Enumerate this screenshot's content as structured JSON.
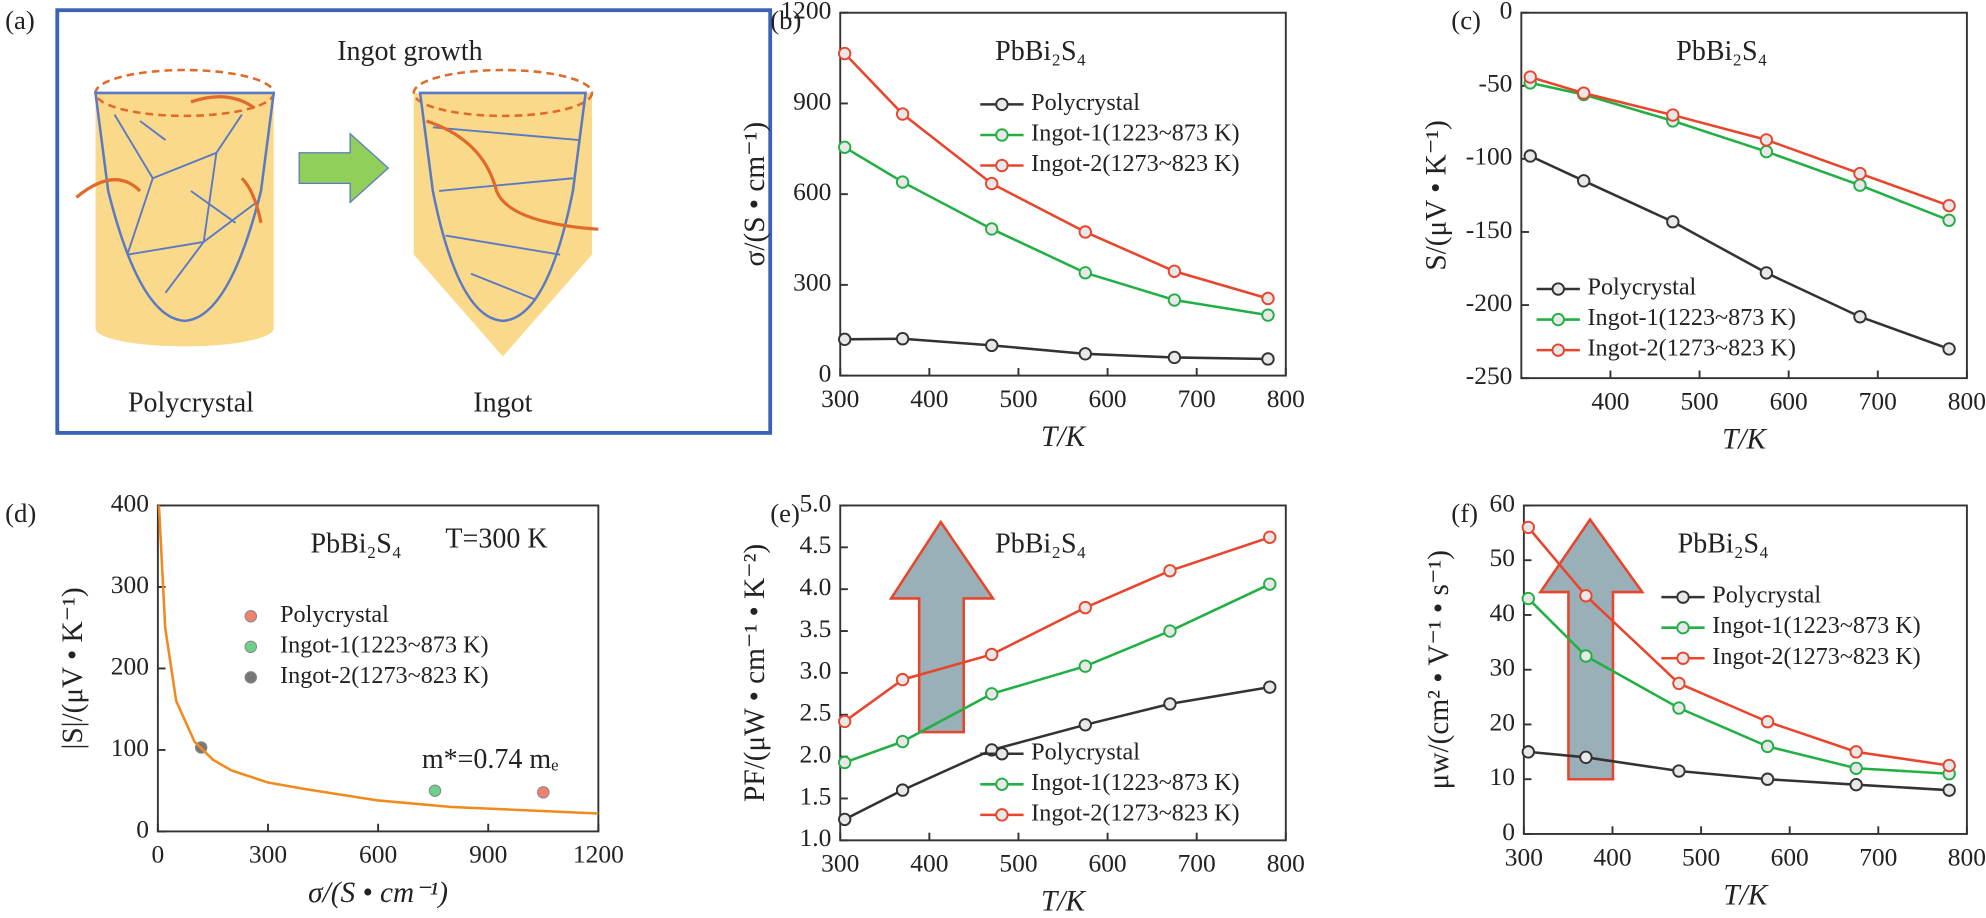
{
  "diagram": {
    "panel_label": "(a)",
    "title": "Ingot growth",
    "left_label": "Polycrystal",
    "right_label": "Ingot"
  },
  "chart_data": [
    {
      "type": "line",
      "panel_label": "(b)",
      "title": "PbBi₂S₄",
      "xlabel": "T/K",
      "ylabel": "σ/(S • cm⁻¹)",
      "x": [
        305,
        370,
        470,
        575,
        675,
        780
      ],
      "series": [
        {
          "name": "Polycrystal",
          "color": "#333333",
          "values": [
            120,
            122,
            100,
            72,
            60,
            55
          ]
        },
        {
          "name": "Ingot-1(1223~873 K)",
          "color": "#22b045",
          "values": [
            755,
            640,
            485,
            340,
            250,
            200
          ]
        },
        {
          "name": "Ingot-2(1273~823 K)",
          "color": "#e8452c",
          "values": [
            1065,
            865,
            635,
            475,
            345,
            255
          ]
        }
      ],
      "xlim": [
        300,
        800
      ],
      "xticks": [
        300,
        400,
        500,
        600,
        700,
        800
      ],
      "ylim": [
        0,
        1200
      ],
      "yticks": [
        0,
        300,
        600,
        900,
        1200
      ],
      "legend": "upper-right"
    },
    {
      "type": "line",
      "panel_label": "(c)",
      "title": "PbBi₂S₄",
      "xlabel": "T/K",
      "ylabel": "S/(μV • K⁻¹)",
      "x": [
        310,
        370,
        470,
        575,
        680,
        780
      ],
      "series": [
        {
          "name": "Polycrystal",
          "color": "#333333",
          "values": [
            -98,
            -115,
            -143,
            -178,
            -208,
            -230
          ]
        },
        {
          "name": "Ingot-1(1223~873 K)",
          "color": "#22b045",
          "values": [
            -48,
            -56,
            -74,
            -95,
            -118,
            -142
          ]
        },
        {
          "name": "Ingot-2(1273~823 K)",
          "color": "#e8452c",
          "values": [
            -44,
            -55,
            -70,
            -87,
            -110,
            -132
          ]
        }
      ],
      "xlim": [
        300,
        800
      ],
      "xticks": [
        400,
        500,
        600,
        700,
        800
      ],
      "ylim": [
        -250,
        0
      ],
      "yticks": [
        -250,
        -200,
        -150,
        -100,
        -50,
        0
      ],
      "legend": "lower-left"
    },
    {
      "type": "scatter",
      "panel_label": "(d)",
      "title": "PbBi₂S₄",
      "xlabel": "σ/(S • cm⁻¹)",
      "ylabel": "|S|/(μV • K⁻¹)",
      "annotations": [
        "T=300 K",
        "m*=0.74 mₑ"
      ],
      "series": [
        {
          "name": "Polycrystal",
          "color": "#f08070",
          "x": [
            1050
          ],
          "values": [
            48
          ]
        },
        {
          "name": "Ingot-1(1223~873 K)",
          "color": "#6fd08a",
          "x": [
            755
          ],
          "values": [
            50
          ]
        },
        {
          "name": "Ingot-2(1273~823 K)",
          "color": "#777777",
          "x": [
            118
          ],
          "values": [
            103
          ]
        },
        {
          "color": "#f08a1c",
          "line": true,
          "x": [
            3,
            20,
            50,
            100,
            150,
            200,
            300,
            400,
            600,
            800,
            1000,
            1200
          ],
          "values": [
            400,
            250,
            160,
            110,
            88,
            75,
            60,
            52,
            38,
            30,
            26,
            22
          ]
        }
      ],
      "xlim": [
        0,
        1200
      ],
      "xticks": [
        0,
        300,
        600,
        900,
        1200
      ],
      "ylim": [
        0,
        400
      ],
      "yticks": [
        0,
        100,
        200,
        300,
        400
      ],
      "legend": "middle-right"
    },
    {
      "type": "line",
      "panel_label": "(e)",
      "title": "PbBi₂S₄",
      "xlabel": "T/K",
      "ylabel": "PF/(μW • cm⁻¹ • K⁻²)",
      "x": [
        305,
        370,
        470,
        575,
        670,
        782
      ],
      "series": [
        {
          "name": "Polycrystal",
          "color": "#333333",
          "values": [
            1.25,
            1.6,
            2.08,
            2.38,
            2.63,
            2.83
          ]
        },
        {
          "name": "Ingot-1(1223~873 K)",
          "color": "#22b045",
          "values": [
            1.93,
            2.18,
            2.75,
            3.08,
            3.5,
            4.06
          ]
        },
        {
          "name": "Ingot-2(1273~823 K)",
          "color": "#e8452c",
          "values": [
            2.42,
            2.92,
            3.22,
            3.78,
            4.22,
            4.62
          ]
        }
      ],
      "xlim": [
        300,
        800
      ],
      "xticks": [
        300,
        400,
        500,
        600,
        700,
        800
      ],
      "ylim": [
        1.0,
        5.0
      ],
      "yticks": [
        {
          "value": 1.0,
          "label": "1.0"
        },
        1.5,
        {
          "value": 2.0,
          "label": "2.0"
        },
        2.5,
        {
          "value": 3.0,
          "label": "3.0"
        },
        3.5,
        {
          "value": 4.0,
          "label": "4.0"
        },
        4.5,
        {
          "value": 5.0,
          "label": "5.0"
        }
      ],
      "legend": "lower-right"
    },
    {
      "type": "line",
      "panel_label": "(f)",
      "title": "PbBi₂S₄",
      "xlabel": "T/K",
      "ylabel": "μw/(cm² • V⁻¹ • s⁻¹)",
      "x": [
        305,
        370,
        475,
        575,
        675,
        780
      ],
      "series": [
        {
          "name": "Polycrystal",
          "color": "#333333",
          "values": [
            15,
            14,
            11.5,
            10,
            9,
            8
          ]
        },
        {
          "name": "Ingot-1(1223~873 K)",
          "color": "#22b045",
          "values": [
            43,
            32.5,
            23,
            16,
            12,
            11
          ]
        },
        {
          "name": "Ingot-2(1273~823 K)",
          "color": "#e8452c",
          "values": [
            56,
            43.5,
            27.5,
            20.5,
            15,
            12.5
          ]
        }
      ],
      "xlim": [
        300,
        800
      ],
      "xticks": [
        300,
        400,
        500,
        600,
        700,
        800
      ],
      "ylim": [
        0,
        60
      ],
      "yticks": [
        0,
        10,
        20,
        30,
        40,
        50,
        60
      ],
      "legend": "upper-right"
    }
  ]
}
